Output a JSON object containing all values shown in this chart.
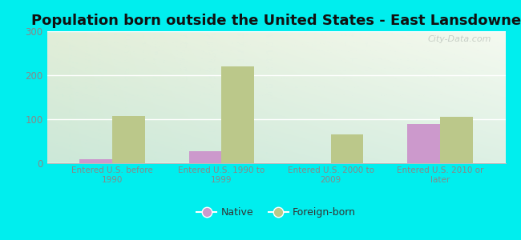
{
  "title": "Population born outside the United States - East Lansdowne",
  "categories": [
    "Entered U.S. before\n1990",
    "Entered U.S. 1990 to\n1999",
    "Entered U.S. 2000 to\n2009",
    "Entered U.S. 2010 or\nlater"
  ],
  "native_values": [
    10,
    28,
    0,
    90
  ],
  "foreign_values": [
    107,
    220,
    65,
    105
  ],
  "native_color": "#cc99cc",
  "foreign_color": "#bbc88a",
  "ylim": [
    0,
    300
  ],
  "yticks": [
    0,
    100,
    200,
    300
  ],
  "background_color": "#00eeee",
  "bar_width": 0.3,
  "title_fontsize": 13,
  "watermark": "City-Data.com",
  "tick_color": "#888888",
  "grid_color": "#dddddd"
}
